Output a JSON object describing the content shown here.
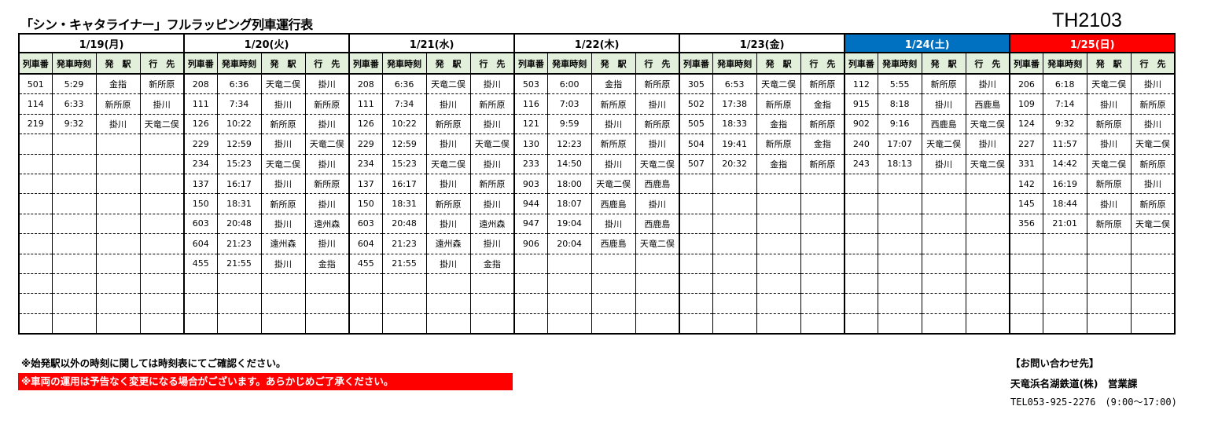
{
  "title": "「シン・キャタライナー」フルラッピング列車運行表",
  "code": "TH2103",
  "columns": [
    "列車番",
    "発車時刻",
    "発　駅",
    "行　先"
  ],
  "colors": {
    "header_bg": "#e2efda",
    "saturday": "#0070c0",
    "sunday": "#ff0000"
  },
  "days": [
    {
      "label": "1/19(月)",
      "type": "weekday",
      "rows": [
        [
          "501",
          "5:29",
          "金指",
          "新所原"
        ],
        [
          "114",
          "6:33",
          "新所原",
          "掛川"
        ],
        [
          "219",
          "9:32",
          "掛川",
          "天竜二俣"
        ]
      ]
    },
    {
      "label": "1/20(火)",
      "type": "weekday",
      "rows": [
        [
          "208",
          "6:36",
          "天竜二俣",
          "掛川"
        ],
        [
          "111",
          "7:34",
          "掛川",
          "新所原"
        ],
        [
          "126",
          "10:22",
          "新所原",
          "掛川"
        ],
        [
          "229",
          "12:59",
          "掛川",
          "天竜二俣"
        ],
        [
          "234",
          "15:23",
          "天竜二俣",
          "掛川"
        ],
        [
          "137",
          "16:17",
          "掛川",
          "新所原"
        ],
        [
          "150",
          "18:31",
          "新所原",
          "掛川"
        ],
        [
          "603",
          "20:48",
          "掛川",
          "遠州森"
        ],
        [
          "604",
          "21:23",
          "遠州森",
          "掛川"
        ],
        [
          "455",
          "21:55",
          "掛川",
          "金指"
        ]
      ]
    },
    {
      "label": "1/21(水)",
      "type": "weekday",
      "rows": [
        [
          "208",
          "6:36",
          "天竜二俣",
          "掛川"
        ],
        [
          "111",
          "7:34",
          "掛川",
          "新所原"
        ],
        [
          "126",
          "10:22",
          "新所原",
          "掛川"
        ],
        [
          "229",
          "12:59",
          "掛川",
          "天竜二俣"
        ],
        [
          "234",
          "15:23",
          "天竜二俣",
          "掛川"
        ],
        [
          "137",
          "16:17",
          "掛川",
          "新所原"
        ],
        [
          "150",
          "18:31",
          "新所原",
          "掛川"
        ],
        [
          "603",
          "20:48",
          "掛川",
          "遠州森"
        ],
        [
          "604",
          "21:23",
          "遠州森",
          "掛川"
        ],
        [
          "455",
          "21:55",
          "掛川",
          "金指"
        ]
      ]
    },
    {
      "label": "1/22(木)",
      "type": "weekday",
      "rows": [
        [
          "503",
          "6:00",
          "金指",
          "新所原"
        ],
        [
          "116",
          "7:03",
          "新所原",
          "掛川"
        ],
        [
          "121",
          "9:59",
          "掛川",
          "新所原"
        ],
        [
          "130",
          "12:23",
          "新所原",
          "掛川"
        ],
        [
          "233",
          "14:50",
          "掛川",
          "天竜二俣"
        ],
        [
          "903",
          "18:00",
          "天竜二俣",
          "西鹿島"
        ],
        [
          "944",
          "18:07",
          "西鹿島",
          "掛川"
        ],
        [
          "947",
          "19:04",
          "掛川",
          "西鹿島"
        ],
        [
          "906",
          "20:04",
          "西鹿島",
          "天竜二俣"
        ]
      ]
    },
    {
      "label": "1/23(金)",
      "type": "weekday",
      "rows": [
        [
          "305",
          "6:53",
          "天竜二俣",
          "新所原"
        ],
        [
          "502",
          "17:38",
          "新所原",
          "金指"
        ],
        [
          "505",
          "18:33",
          "金指",
          "新所原"
        ],
        [
          "504",
          "19:41",
          "新所原",
          "金指"
        ],
        [
          "507",
          "20:32",
          "金指",
          "新所原"
        ]
      ]
    },
    {
      "label": "1/24(土)",
      "type": "sat",
      "rows": [
        [
          "112",
          "5:55",
          "新所原",
          "掛川"
        ],
        [
          "915",
          "8:18",
          "掛川",
          "西鹿島"
        ],
        [
          "902",
          "9:16",
          "西鹿島",
          "天竜二俣"
        ],
        [
          "240",
          "17:07",
          "天竜二俣",
          "掛川"
        ],
        [
          "243",
          "18:13",
          "掛川",
          "天竜二俣"
        ]
      ]
    },
    {
      "label": "1/25(日)",
      "type": "sun",
      "rows": [
        [
          "206",
          "6:18",
          "天竜二俣",
          "掛川"
        ],
        [
          "109",
          "7:14",
          "掛川",
          "新所原"
        ],
        [
          "124",
          "9:32",
          "新所原",
          "掛川"
        ],
        [
          "227",
          "11:57",
          "掛川",
          "天竜二俣"
        ],
        [
          "331",
          "14:42",
          "天竜二俣",
          "新所原"
        ],
        [
          "142",
          "16:19",
          "新所原",
          "掛川"
        ],
        [
          "145",
          "18:44",
          "掛川",
          "新所原"
        ],
        [
          "356",
          "21:01",
          "新所原",
          "天竜二俣"
        ]
      ]
    }
  ],
  "notes": {
    "note1": "※始発駅以外の時刻に関しては時刻表にてご確認ください。",
    "note2": "※車両の運用は予告なく変更になる場合がございます。あらかじめご了承ください。"
  },
  "contact": {
    "heading": "【お問い合わせ先】",
    "org": "天竜浜名湖鉄道(株)　営業課",
    "tel": "TEL053-925-2276　(9:00〜17:00)"
  }
}
